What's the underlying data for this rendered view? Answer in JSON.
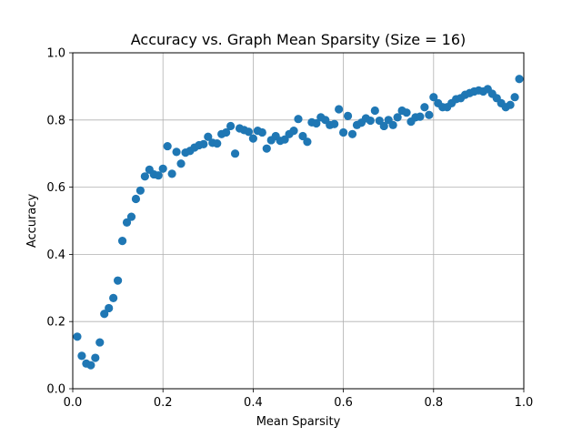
{
  "chart_data": {
    "type": "scatter",
    "title": "Accuracy vs. Graph Mean Sparsity (Size = 16)",
    "xlabel": "Mean Sparsity",
    "ylabel": "Accuracy",
    "xlim": [
      0.0,
      1.0
    ],
    "ylim": [
      0.0,
      1.0
    ],
    "xticks": [
      "0.0",
      "0.2",
      "0.4",
      "0.6",
      "0.8",
      "1.0"
    ],
    "yticks": [
      "0.0",
      "0.2",
      "0.4",
      "0.6",
      "0.8",
      "1.0"
    ],
    "grid": true,
    "marker_color": "#1f77b4",
    "series": [
      {
        "x": [
          0.01,
          0.02,
          0.03,
          0.04,
          0.05,
          0.06,
          0.07,
          0.08,
          0.09,
          0.1,
          0.11,
          0.12,
          0.13,
          0.14,
          0.15,
          0.16,
          0.17,
          0.18,
          0.19,
          0.2,
          0.21,
          0.22,
          0.23,
          0.24,
          0.25,
          0.26,
          0.27,
          0.28,
          0.29,
          0.3,
          0.31,
          0.32,
          0.33,
          0.34,
          0.35,
          0.36,
          0.37,
          0.38,
          0.39,
          0.4,
          0.41,
          0.42,
          0.43,
          0.44,
          0.45,
          0.46,
          0.47,
          0.48,
          0.49,
          0.5,
          0.51,
          0.52,
          0.53,
          0.54,
          0.55,
          0.56,
          0.57,
          0.58,
          0.59,
          0.6,
          0.61,
          0.62,
          0.63,
          0.64,
          0.65,
          0.66,
          0.67,
          0.68,
          0.69,
          0.7,
          0.71,
          0.72,
          0.73,
          0.74,
          0.75,
          0.76,
          0.77,
          0.78,
          0.79,
          0.8,
          0.81,
          0.82,
          0.83,
          0.84,
          0.85,
          0.86,
          0.87,
          0.88,
          0.89,
          0.9,
          0.91,
          0.92,
          0.93,
          0.94,
          0.95,
          0.96,
          0.97,
          0.98,
          0.99
        ],
        "y": [
          0.155,
          0.098,
          0.075,
          0.07,
          0.092,
          0.138,
          0.223,
          0.24,
          0.27,
          0.322,
          0.44,
          0.495,
          0.512,
          0.565,
          0.59,
          0.632,
          0.652,
          0.638,
          0.635,
          0.655,
          0.722,
          0.64,
          0.705,
          0.67,
          0.703,
          0.708,
          0.718,
          0.725,
          0.728,
          0.75,
          0.732,
          0.73,
          0.758,
          0.763,
          0.782,
          0.7,
          0.775,
          0.77,
          0.765,
          0.745,
          0.768,
          0.763,
          0.715,
          0.74,
          0.752,
          0.738,
          0.742,
          0.758,
          0.768,
          0.803,
          0.752,
          0.735,
          0.793,
          0.79,
          0.808,
          0.8,
          0.785,
          0.788,
          0.832,
          0.763,
          0.812,
          0.758,
          0.785,
          0.792,
          0.805,
          0.798,
          0.828,
          0.798,
          0.782,
          0.8,
          0.785,
          0.808,
          0.828,
          0.822,
          0.795,
          0.808,
          0.81,
          0.838,
          0.815,
          0.868,
          0.85,
          0.838,
          0.838,
          0.85,
          0.862,
          0.865,
          0.875,
          0.88,
          0.885,
          0.888,
          0.885,
          0.892,
          0.878,
          0.865,
          0.85,
          0.838,
          0.845,
          0.868,
          0.922
        ]
      }
    ]
  }
}
